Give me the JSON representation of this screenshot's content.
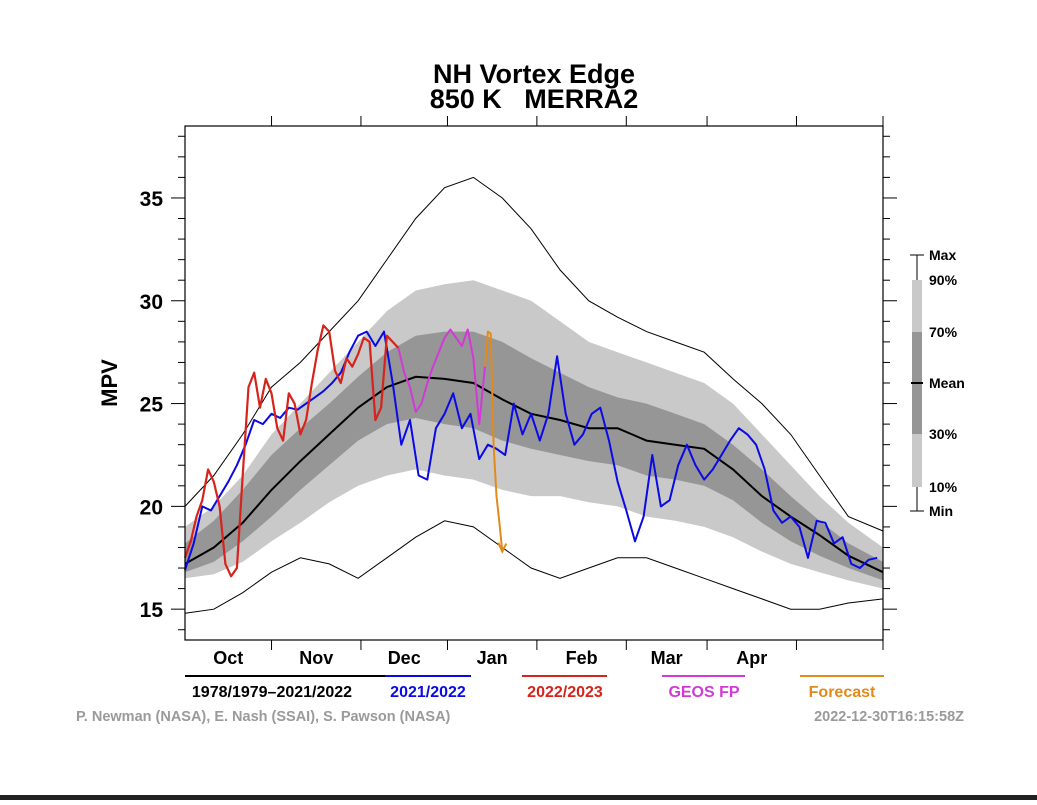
{
  "colors": {
    "band_outer": "#c9c9c9",
    "band_inner": "#969696",
    "mean": "#000000",
    "minmax": "#000000",
    "season_2021": "#0a0ae6",
    "season_2022": "#d6231c",
    "geos_fp": "#d23ad6",
    "forecast": "#e28a1a",
    "credits": "#9a9a9a"
  },
  "chart_data": {
    "type": "line",
    "title": "NH Vortex Edge",
    "subtitle": "850 K   MERRA2",
    "xlabel": "",
    "ylabel": "MPV",
    "x_unit": "day of season (1 Sep = 0)",
    "xlim": [
      0,
      242
    ],
    "ylim": [
      13.5,
      38.5
    ],
    "yticks": [
      15,
      20,
      25,
      30,
      35
    ],
    "ytick_labels": [
      "15",
      "20",
      "25",
      "30",
      "35"
    ],
    "month_ticks": [
      30,
      61,
      91,
      122,
      153,
      181,
      212,
      242
    ],
    "month_labels": [
      {
        "label": "Oct",
        "x": 15
      },
      {
        "label": "Nov",
        "x": 45.5
      },
      {
        "label": "Dec",
        "x": 76
      },
      {
        "label": "Jan",
        "x": 106.5
      },
      {
        "label": "Feb",
        "x": 137.5
      },
      {
        "label": "Mar",
        "x": 167
      },
      {
        "label": "Apr",
        "x": 196.5
      }
    ],
    "grid": false,
    "legend_position": "bottom",
    "band_legend": {
      "labels": [
        "Max",
        "90%",
        "70%",
        "Mean",
        "30%",
        "10%",
        "Min"
      ]
    },
    "series": [
      {
        "name": "1978/1979–2021/2022",
        "key": "climatology",
        "color": "#000000"
      },
      {
        "name": "2021/2022",
        "key": "s2021",
        "color": "#0a0ae6"
      },
      {
        "name": "2022/2023",
        "key": "s2022",
        "color": "#d6231c"
      },
      {
        "name": "GEOS FP",
        "key": "geos",
        "color": "#d23ad6"
      },
      {
        "name": "Forecast",
        "key": "forecast",
        "color": "#e28a1a"
      }
    ],
    "climatology": {
      "x": [
        0,
        10,
        20,
        30,
        40,
        50,
        60,
        70,
        80,
        90,
        100,
        110,
        120,
        130,
        140,
        150,
        160,
        170,
        180,
        190,
        200,
        210,
        220,
        230,
        242
      ],
      "max": [
        20.0,
        21.5,
        23.5,
        25.8,
        27.0,
        28.5,
        30.0,
        32.0,
        34.0,
        35.5,
        36.0,
        35.0,
        33.5,
        31.5,
        30.0,
        29.2,
        28.5,
        28.0,
        27.5,
        26.2,
        25.0,
        23.5,
        21.5,
        19.5,
        18.8
      ],
      "p90": [
        19.0,
        20.0,
        21.5,
        23.5,
        25.0,
        26.5,
        28.0,
        29.5,
        30.5,
        30.8,
        31.0,
        30.5,
        30.0,
        29.0,
        28.0,
        27.5,
        27.0,
        26.5,
        26.0,
        25.0,
        23.5,
        22.0,
        20.5,
        19.2,
        18.0
      ],
      "p70": [
        18.2,
        19.3,
        20.8,
        22.5,
        23.8,
        25.0,
        26.3,
        27.5,
        28.3,
        28.5,
        28.5,
        28.0,
        27.2,
        26.5,
        25.8,
        25.3,
        25.0,
        24.5,
        24.0,
        23.0,
        21.8,
        20.5,
        19.3,
        18.2,
        17.3
      ],
      "mean": [
        17.2,
        18.0,
        19.2,
        20.8,
        22.2,
        23.5,
        24.8,
        25.8,
        26.3,
        26.2,
        26.0,
        25.2,
        24.5,
        24.2,
        23.8,
        23.8,
        23.2,
        23.0,
        22.8,
        21.8,
        20.5,
        19.5,
        18.6,
        17.6,
        16.8
      ],
      "p30": [
        16.8,
        17.3,
        18.3,
        19.5,
        20.8,
        22.0,
        23.2,
        24.0,
        24.3,
        24.0,
        23.8,
        23.2,
        22.8,
        22.5,
        22.2,
        22.0,
        21.5,
        21.3,
        21.0,
        20.3,
        19.2,
        18.3,
        17.6,
        17.0,
        16.4
      ],
      "p10": [
        16.5,
        16.7,
        17.3,
        18.3,
        19.2,
        20.2,
        21.0,
        21.5,
        21.8,
        21.5,
        21.3,
        20.8,
        20.5,
        20.5,
        20.2,
        20.0,
        19.5,
        19.3,
        19.0,
        18.5,
        17.8,
        17.2,
        16.8,
        16.4,
        16.0
      ],
      "min": [
        14.8,
        15.0,
        15.8,
        16.8,
        17.5,
        17.2,
        16.5,
        17.5,
        18.5,
        19.3,
        19.0,
        18.0,
        17.0,
        16.5,
        17.0,
        17.5,
        17.5,
        17.0,
        16.5,
        16.0,
        15.5,
        15.0,
        15.0,
        15.3,
        15.5
      ]
    },
    "s2021": {
      "x": [
        0,
        3,
        6,
        9,
        12,
        15,
        18,
        21,
        24,
        27,
        30,
        33,
        36,
        39,
        42,
        45,
        48,
        51,
        54,
        57,
        60,
        63,
        66,
        69,
        72,
        75,
        78,
        81,
        84,
        87,
        90,
        93,
        96,
        99,
        102,
        105,
        108,
        111,
        114,
        117,
        120,
        123,
        126,
        129,
        132,
        135,
        138,
        141,
        144,
        147,
        150,
        153,
        156,
        159,
        162,
        165,
        168,
        171,
        174,
        177,
        180,
        183,
        186,
        189,
        192,
        195,
        198,
        201,
        204,
        207,
        210,
        213,
        216,
        219,
        222,
        225,
        228,
        231,
        234,
        237,
        240
      ],
      "y": [
        16.9,
        18.2,
        20.0,
        19.8,
        20.5,
        21.2,
        22.0,
        23.0,
        24.2,
        24.0,
        24.5,
        24.3,
        24.8,
        24.7,
        25.0,
        25.3,
        25.6,
        26.0,
        26.5,
        27.5,
        28.3,
        28.5,
        27.8,
        28.5,
        26.0,
        23.0,
        24.2,
        21.5,
        21.3,
        23.8,
        24.5,
        25.5,
        23.8,
        24.5,
        22.3,
        23.0,
        22.8,
        22.5,
        25.0,
        23.5,
        24.5,
        23.2,
        24.5,
        27.3,
        24.5,
        23.0,
        23.5,
        24.5,
        24.8,
        23.2,
        21.2,
        19.8,
        18.3,
        19.5,
        22.5,
        20.0,
        20.3,
        22.0,
        23.0,
        22.0,
        21.3,
        21.8,
        22.5,
        23.2,
        23.8,
        23.5,
        23.0,
        21.8,
        19.8,
        19.2,
        19.5,
        19.0,
        17.5,
        19.3,
        19.2,
        18.2,
        18.5,
        17.2,
        17.0,
        17.4,
        17.5
      ]
    },
    "s2022": {
      "x": [
        0,
        2,
        4,
        6,
        8,
        10,
        12,
        14,
        16,
        18,
        20,
        22,
        24,
        26,
        28,
        30,
        32,
        34,
        36,
        38,
        40,
        42,
        44,
        46,
        48,
        50,
        52,
        54,
        56,
        58,
        60,
        62,
        64,
        66,
        68,
        70,
        72,
        74
      ],
      "y": [
        17.5,
        18.3,
        19.5,
        20.3,
        21.8,
        21.2,
        20.0,
        17.2,
        16.6,
        17.0,
        21.5,
        25.8,
        26.5,
        24.8,
        26.2,
        25.5,
        23.8,
        23.2,
        25.5,
        25.0,
        23.5,
        24.2,
        26.0,
        27.6,
        28.8,
        28.5,
        26.6,
        26.0,
        27.2,
        26.8,
        27.4,
        28.2,
        28.0,
        24.2,
        24.8,
        28.3,
        28.0,
        27.7
      ]
    },
    "geos": {
      "x": [
        74,
        76,
        78,
        80,
        82,
        84,
        86,
        88,
        90,
        92,
        94,
        96,
        98,
        100,
        102,
        104
      ],
      "y": [
        27.7,
        26.5,
        25.8,
        24.6,
        25.0,
        26.0,
        26.8,
        27.5,
        28.2,
        28.6,
        28.2,
        27.8,
        28.6,
        27.2,
        24.0,
        26.8
      ]
    },
    "forecast": {
      "x": [
        104,
        105,
        106,
        107,
        108,
        109,
        110
      ],
      "y": [
        26.8,
        28.5,
        28.4,
        23.0,
        20.5,
        19.2,
        17.8
      ]
    }
  },
  "credits": {
    "left": "P. Newman (NASA), E. Nash (SSAI), S. Pawson (NASA)",
    "right": "2022-12-30T16:15:58Z"
  }
}
